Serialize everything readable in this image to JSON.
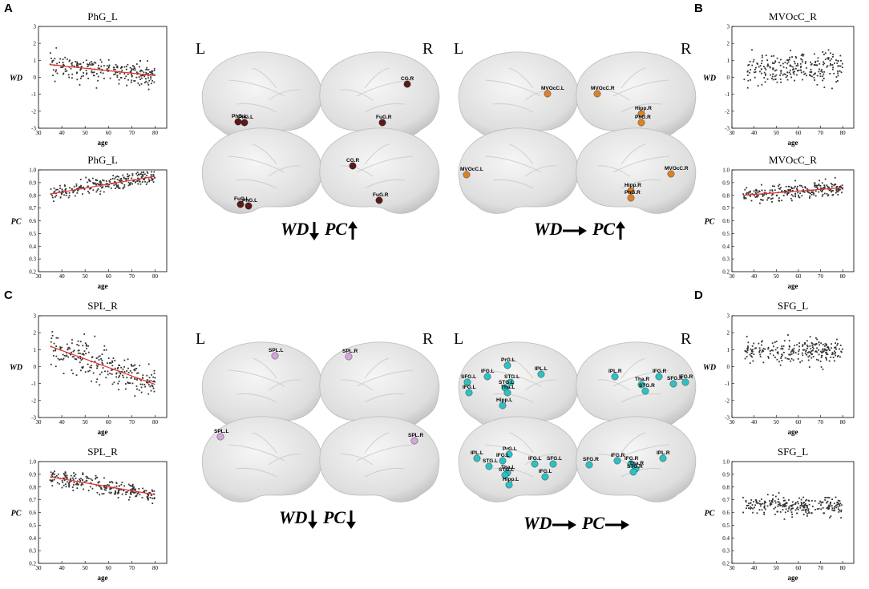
{
  "panels": {
    "A": "A",
    "B": "B",
    "C": "C",
    "D": "D"
  },
  "hemispheres": {
    "left": "L",
    "right": "R"
  },
  "summaries": {
    "A": {
      "wd": "WD",
      "pc": "PC"
    },
    "B": {
      "wd": "WD",
      "pc": "PC"
    },
    "C": {
      "wd": "WD",
      "pc": "PC"
    },
    "D": {
      "wd": "WD",
      "pc": "PC"
    }
  },
  "brain_nodes": {
    "A_lat_L": [
      "PhG.L",
      "PhG.L"
    ],
    "A_lat_R": [
      "CG.R",
      "FuG.R"
    ],
    "A_med_L": [
      "FuG.L",
      "PhG.L"
    ],
    "A_med_R": [
      "CG.R",
      "FuG.R"
    ],
    "B_lat_L": [
      "MVOcC.L"
    ],
    "B_lat_R": [
      "MVOcC.R",
      "Hipp.R",
      "PhG.R"
    ],
    "B_med_L": [
      "MVOcC.L"
    ],
    "B_med_R": [
      "MVOcC.R",
      "Hipp.R",
      "PhG.R"
    ],
    "C_lat_L": [
      "SPL.L"
    ],
    "C_lat_R": [
      "SPL.R"
    ],
    "C_med_L": [
      "SPL.L"
    ],
    "C_med_R": [
      "SPL.R"
    ],
    "D_lat_L": [
      "PrG.L",
      "IFG.L",
      "SFG.L",
      "IFG.L",
      "STG.L",
      "IPL.L",
      "STG.L",
      "Tha.L",
      "Hipp.L"
    ],
    "D_lat_R": [
      "IPL.R",
      "IFG.R",
      "IFG.R",
      "SFG.R",
      "Tha.R",
      "STG.R"
    ],
    "D_med_L": [
      "IPL.L",
      "PrG.L",
      "IFG.L",
      "STG.L",
      "Tha.L",
      "STG.L",
      "IFG.L",
      "SFG.L",
      "IFG.L",
      "Hipp.L"
    ],
    "D_med_R": [
      "SFG.R",
      "IFG.R",
      "IFG.R",
      "IPL.R",
      "Tha.R",
      "STG.R"
    ]
  },
  "brain_colors": {
    "A": "#5a1a1a",
    "B": "#d9822b",
    "C": "#d6a3dc",
    "D": "#2fc1c1"
  },
  "chart_data": [
    {
      "id": "A_WD",
      "type": "scatter",
      "title": "PhG_L",
      "xlabel": "age",
      "ylabel": "WD",
      "xlim": [
        30,
        85
      ],
      "ylim": [
        -3,
        3
      ],
      "xticks": [
        30,
        40,
        50,
        60,
        70,
        80
      ],
      "yticks": [
        -3,
        -2,
        -1,
        0,
        1,
        2,
        3
      ],
      "fit": [
        [
          35,
          0.75
        ],
        [
          80,
          0.1
        ]
      ],
      "pattern": {
        "center": 0.4,
        "spread": 0.55,
        "seed": 11
      }
    },
    {
      "id": "A_PC",
      "type": "scatter",
      "title": "PhG_L",
      "xlabel": "age",
      "ylabel": "PC",
      "xlim": [
        30,
        85
      ],
      "ylim": [
        0.2,
        1.0
      ],
      "xticks": [
        30,
        40,
        50,
        60,
        70,
        80
      ],
      "yticks": [
        0.2,
        0.3,
        0.4,
        0.5,
        0.6,
        0.7,
        0.8,
        0.9,
        1.0
      ],
      "fit": [
        [
          35,
          0.81
        ],
        [
          80,
          0.95
        ]
      ],
      "pattern": {
        "center": 0.87,
        "spread": 0.045,
        "seed": 12
      }
    },
    {
      "id": "B_WD",
      "type": "scatter",
      "title": "MVOcC_R",
      "xlabel": "age",
      "ylabel": "WD",
      "xlim": [
        30,
        85
      ],
      "ylim": [
        -3,
        3
      ],
      "xticks": [
        30,
        40,
        50,
        60,
        70,
        80
      ],
      "yticks": [
        -3,
        -2,
        -1,
        0,
        1,
        2,
        3
      ],
      "fit": null,
      "pattern": {
        "center": 0.5,
        "spread": 0.65,
        "seed": 21
      }
    },
    {
      "id": "B_PC",
      "type": "scatter",
      "title": "MVOcC_R",
      "xlabel": "age",
      "ylabel": "PC",
      "xlim": [
        30,
        85
      ],
      "ylim": [
        0.2,
        1.0
      ],
      "xticks": [
        30,
        40,
        50,
        60,
        70,
        80
      ],
      "yticks": [
        0.2,
        0.3,
        0.4,
        0.5,
        0.6,
        0.7,
        0.8,
        0.9,
        1.0
      ],
      "fit": [
        [
          35,
          0.8
        ],
        [
          80,
          0.86
        ]
      ],
      "pattern": {
        "center": 0.83,
        "spread": 0.045,
        "seed": 22
      }
    },
    {
      "id": "C_WD",
      "type": "scatter",
      "title": "SPL_R",
      "xlabel": "age",
      "ylabel": "WD",
      "xlim": [
        30,
        85
      ],
      "ylim": [
        -3,
        3
      ],
      "xticks": [
        30,
        40,
        50,
        60,
        70,
        80
      ],
      "yticks": [
        -3,
        -2,
        -1,
        0,
        1,
        2,
        3
      ],
      "fit": [
        [
          35,
          1.2
        ],
        [
          80,
          -1.05
        ]
      ],
      "pattern": {
        "center": 0.1,
        "spread": 0.75,
        "seed": 31
      }
    },
    {
      "id": "C_PC",
      "type": "scatter",
      "title": "SPL_R",
      "xlabel": "age",
      "ylabel": "PC",
      "xlim": [
        30,
        85
      ],
      "ylim": [
        0.2,
        1.0
      ],
      "xticks": [
        30,
        40,
        50,
        60,
        70,
        80
      ],
      "yticks": [
        0.2,
        0.3,
        0.4,
        0.5,
        0.6,
        0.7,
        0.8,
        0.9,
        1.0
      ],
      "fit": [
        [
          35,
          0.88
        ],
        [
          80,
          0.74
        ]
      ],
      "pattern": {
        "center": 0.81,
        "spread": 0.045,
        "seed": 32
      }
    },
    {
      "id": "D_WD",
      "type": "scatter",
      "title": "SFG_L",
      "xlabel": "age",
      "ylabel": "WD",
      "xlim": [
        30,
        85
      ],
      "ylim": [
        -3,
        3
      ],
      "xticks": [
        30,
        40,
        50,
        60,
        70,
        80
      ],
      "yticks": [
        -3,
        -2,
        -1,
        0,
        1,
        2,
        3
      ],
      "fit": null,
      "pattern": {
        "center": 0.9,
        "spread": 0.5,
        "seed": 41
      }
    },
    {
      "id": "D_PC",
      "type": "scatter",
      "title": "SFG_L",
      "xlabel": "age",
      "ylabel": "PC",
      "xlim": [
        30,
        85
      ],
      "ylim": [
        0.2,
        1.0
      ],
      "xticks": [
        30,
        40,
        50,
        60,
        70,
        80
      ],
      "yticks": [
        0.2,
        0.3,
        0.4,
        0.5,
        0.6,
        0.7,
        0.8,
        0.9,
        1.0
      ],
      "fit": null,
      "pattern": {
        "center": 0.65,
        "spread": 0.055,
        "seed": 42
      }
    }
  ]
}
